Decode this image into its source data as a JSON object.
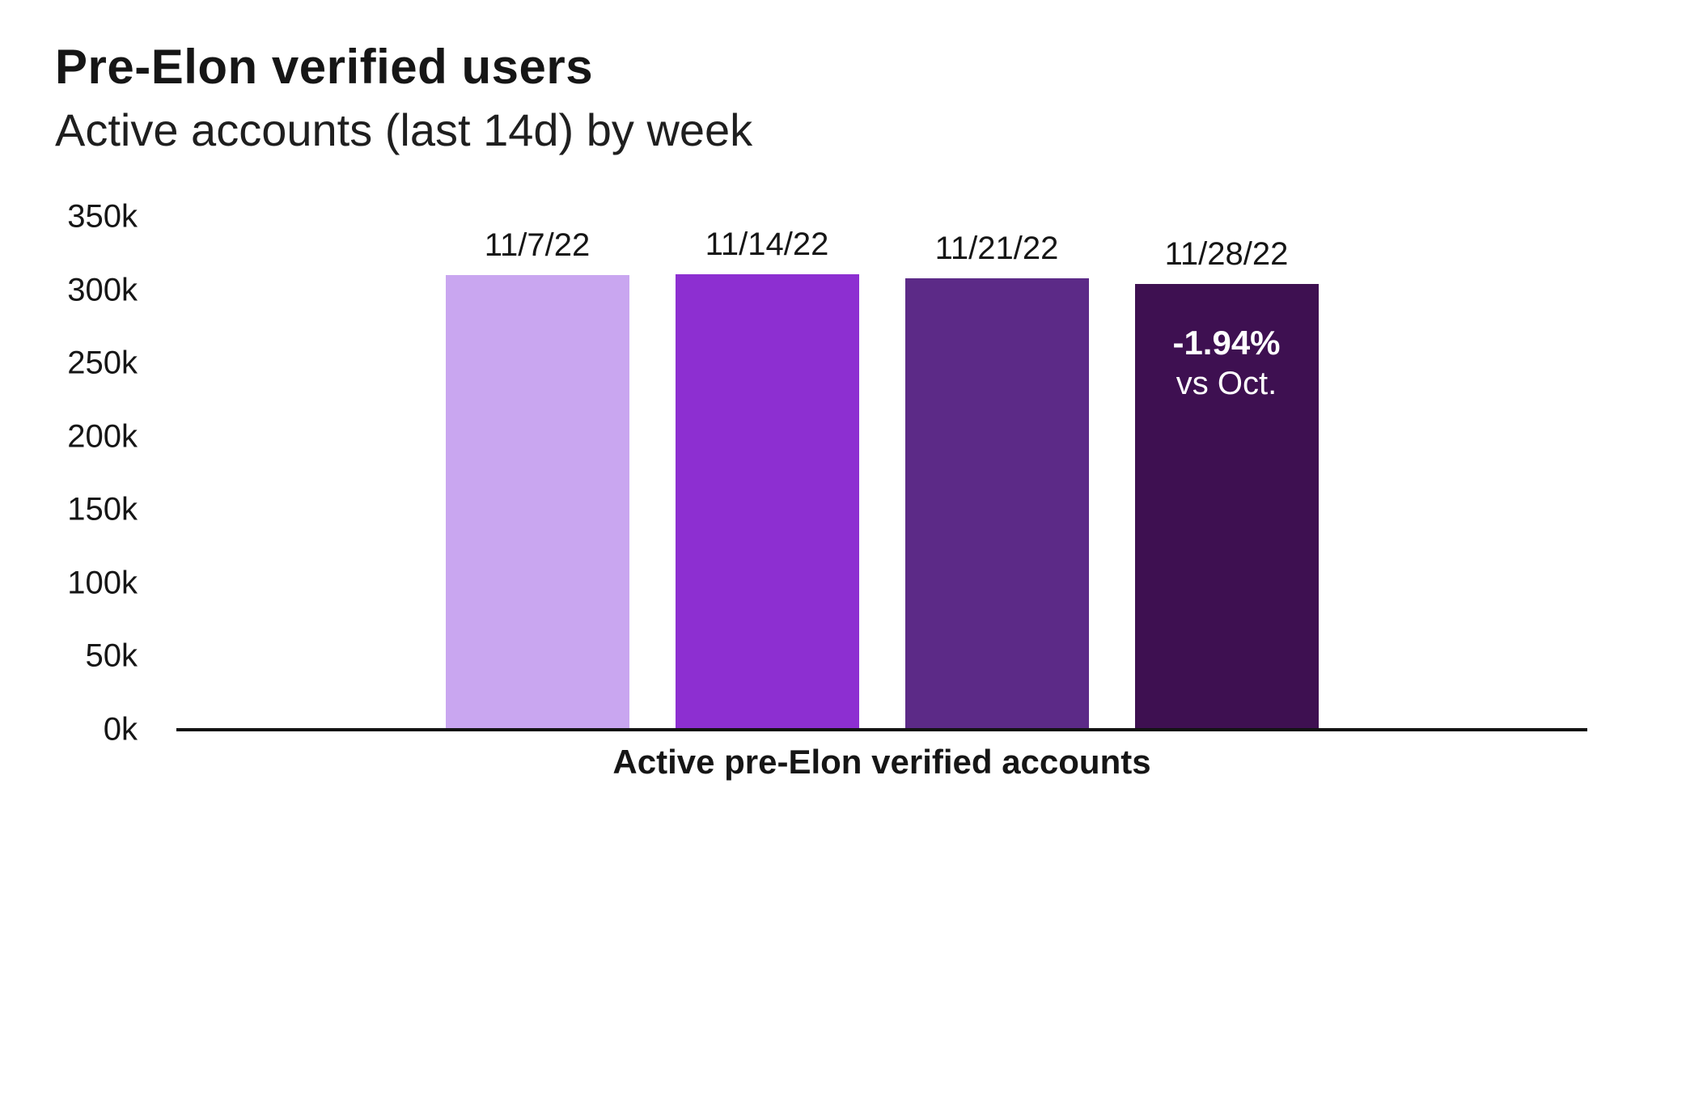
{
  "header": {
    "title": "Pre-Elon verified users",
    "subtitle": "Active accounts (last 14d) by week"
  },
  "chart_data": {
    "type": "bar",
    "title": "Pre-Elon verified users",
    "subtitle": "Active accounts (last 14d) by week",
    "categories": [
      "11/7/22",
      "11/14/22",
      "11/21/22",
      "11/28/22"
    ],
    "values": [
      310000,
      311000,
      308000,
      304000
    ],
    "bar_colors": [
      "#c9a6f0",
      "#8d2fd1",
      "#5c2a87",
      "#3e1051"
    ],
    "annotation": {
      "bar_index": 3,
      "line1": "-1.94%",
      "line2": "vs Oct."
    },
    "xlabel": "Active pre-Elon verified accounts",
    "ylabel": "",
    "ylim": [
      0,
      350000
    ],
    "yticks": [
      {
        "label": "0k",
        "value": 0
      },
      {
        "label": "50k",
        "value": 50000
      },
      {
        "label": "100k",
        "value": 100000
      },
      {
        "label": "150k",
        "value": 150000
      },
      {
        "label": "200k",
        "value": 200000
      },
      {
        "label": "250k",
        "value": 250000
      },
      {
        "label": "300k",
        "value": 300000
      },
      {
        "label": "350k",
        "value": 350000
      }
    ],
    "legend": false,
    "grid": false
  }
}
